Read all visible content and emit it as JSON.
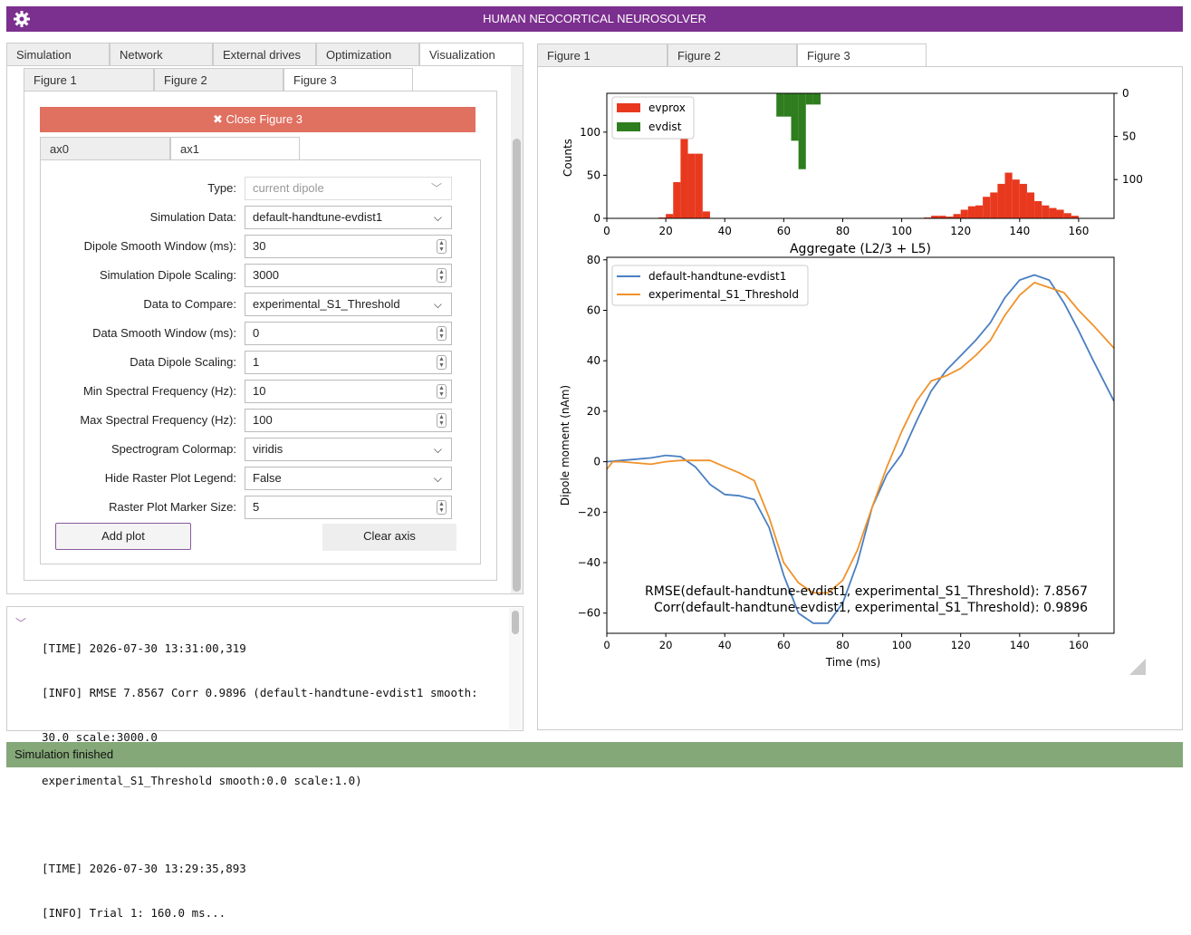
{
  "app": {
    "title": "HUMAN NEOCORTICAL NEUROSOLVER"
  },
  "main_tabs": [
    {
      "label": "Simulation"
    },
    {
      "label": "Network"
    },
    {
      "label": "External drives"
    },
    {
      "label": "Optimization"
    },
    {
      "label": "Visualization"
    }
  ],
  "viz_tabs": [
    {
      "label": "Figure 1"
    },
    {
      "label": "Figure 2"
    },
    {
      "label": "Figure 3"
    }
  ],
  "close_button": "✖ Close Figure 3",
  "ax_tabs": [
    {
      "label": "ax0"
    },
    {
      "label": "ax1"
    }
  ],
  "form": [
    {
      "label": "Type:",
      "value": "current dipole",
      "kind": "select",
      "disabled": true
    },
    {
      "label": "Simulation Data:",
      "value": "default-handtune-evdist1",
      "kind": "select"
    },
    {
      "label": "Dipole Smooth Window (ms):",
      "value": "30",
      "kind": "number"
    },
    {
      "label": "Simulation Dipole Scaling:",
      "value": "3000",
      "kind": "number"
    },
    {
      "label": "Data to Compare:",
      "value": "experimental_S1_Threshold",
      "kind": "select"
    },
    {
      "label": "Data Smooth Window (ms):",
      "value": "0",
      "kind": "number"
    },
    {
      "label": "Data Dipole Scaling:",
      "value": "1",
      "kind": "number"
    },
    {
      "label": "Min Spectral Frequency (Hz):",
      "value": "10",
      "kind": "number"
    },
    {
      "label": "Max Spectral Frequency (Hz):",
      "value": "100",
      "kind": "number"
    },
    {
      "label": "Spectrogram Colormap:",
      "value": "viridis",
      "kind": "select"
    },
    {
      "label": "Hide Raster Plot Legend:",
      "value": "False",
      "kind": "select"
    },
    {
      "label": "Raster Plot Marker Size:",
      "value": "5",
      "kind": "number"
    }
  ],
  "buttons": {
    "add_plot": "Add plot",
    "clear_axis": "Clear axis"
  },
  "log_lines": [
    "[TIME] 2026-07-30 13:31:00,319",
    "[INFO] RMSE 7.8567 Corr 0.9896 (default-handtune-evdist1 smooth:",
    "30.0 scale:3000.0",
    "experimental_S1_Threshold smooth:0.0 scale:1.0)",
    "",
    "[TIME] 2026-07-30 13:29:35,893",
    "[INFO] Trial 1: 160.0 ms..."
  ],
  "figure_tabs": [
    {
      "label": "Figure 1"
    },
    {
      "label": "Figure 2"
    },
    {
      "label": "Figure 3"
    }
  ],
  "status": "Simulation finished",
  "colors": {
    "accent": "#7b2f8e",
    "close": "#e07060",
    "status": "#84a878",
    "evprox": "#e8391e",
    "evdist": "#2e7d1e",
    "sim": "#4a7fc1",
    "exp": "#f0922b"
  },
  "chart_data": [
    {
      "type": "bar",
      "title": "",
      "xlabel": "Aggregate (L2/3 + L5)",
      "ylabel": "Counts",
      "xlim": [
        0,
        172
      ],
      "ylim_left": [
        0,
        145
      ],
      "ylim_right_inverted": [
        0,
        145
      ],
      "x_ticks": [
        "0",
        "20",
        "40",
        "60",
        "80",
        "100",
        "120",
        "140",
        "160"
      ],
      "y_ticks_left": [
        "0",
        "50",
        "100"
      ],
      "y_ticks_right": [
        "0",
        "50",
        "100"
      ],
      "bin_width": 2.5,
      "series": [
        {
          "name": "evprox",
          "axis": "left",
          "bins": [
            [
              17.5,
              1
            ],
            [
              20,
              5
            ],
            [
              22.5,
              42
            ],
            [
              25,
              130
            ],
            [
              27.5,
              75
            ],
            [
              30,
              75
            ],
            [
              32.5,
              8
            ],
            [
              107.5,
              1
            ],
            [
              110,
              3
            ],
            [
              112.5,
              3
            ],
            [
              115,
              2
            ],
            [
              117.5,
              5
            ],
            [
              120,
              10
            ],
            [
              122.5,
              14
            ],
            [
              125,
              15
            ],
            [
              127.5,
              25
            ],
            [
              130,
              30
            ],
            [
              132.5,
              40
            ],
            [
              135,
              53
            ],
            [
              137.5,
              45
            ],
            [
              140,
              40
            ],
            [
              142.5,
              30
            ],
            [
              145,
              20
            ],
            [
              147.5,
              15
            ],
            [
              150,
              12
            ],
            [
              152.5,
              10
            ],
            [
              155,
              6
            ],
            [
              157.5,
              3
            ]
          ]
        },
        {
          "name": "evdist",
          "axis": "right_inverted",
          "bins": [
            [
              57.5,
              27
            ],
            [
              60,
              27
            ],
            [
              62.5,
              55
            ],
            [
              65,
              88
            ],
            [
              67.5,
              13
            ],
            [
              70,
              13
            ]
          ]
        }
      ],
      "legend": "top-left"
    },
    {
      "type": "line",
      "title": "",
      "xlabel": "Time (ms)",
      "ylabel": "Dipole moment (nAm)",
      "xlim": [
        0,
        172
      ],
      "ylim": [
        -68,
        81
      ],
      "x_ticks": [
        "0",
        "20",
        "40",
        "60",
        "80",
        "100",
        "120",
        "140",
        "160"
      ],
      "y_ticks": [
        "80",
        "60",
        "40",
        "20",
        "0",
        "−20",
        "−40",
        "−60"
      ],
      "series": [
        {
          "name": "default-handtune-evdist1",
          "x": [
            0,
            5,
            10,
            15,
            20,
            25,
            30,
            35,
            40,
            45,
            50,
            55,
            60,
            65,
            70,
            75,
            80,
            85,
            90,
            95,
            100,
            105,
            110,
            115,
            120,
            125,
            130,
            135,
            140,
            145,
            150,
            155,
            160,
            165,
            172
          ],
          "y": [
            0,
            0.5,
            1,
            1.5,
            2.5,
            2,
            -2,
            -9,
            -13,
            -13.5,
            -15,
            -26,
            -45,
            -60,
            -64,
            -64,
            -56,
            -40,
            -18,
            -5,
            3,
            16,
            28,
            36,
            42,
            48,
            55,
            65,
            72,
            74,
            72,
            63,
            52,
            40,
            24
          ]
        },
        {
          "name": "experimental_S1_Threshold",
          "x": [
            0,
            2,
            5,
            10,
            15,
            20,
            25,
            30,
            35,
            40,
            45,
            50,
            55,
            60,
            65,
            70,
            75,
            80,
            85,
            90,
            95,
            100,
            105,
            110,
            115,
            120,
            125,
            130,
            135,
            140,
            145,
            150,
            155,
            160,
            165,
            172
          ],
          "y": [
            -3,
            0,
            0,
            -0.5,
            -1,
            0,
            0.5,
            0.5,
            0.5,
            -2,
            -4.5,
            -7.5,
            -22,
            -40,
            -48,
            -52,
            -52,
            -47,
            -35,
            -18,
            -2,
            12,
            24,
            32,
            34,
            37,
            42,
            48,
            58,
            66,
            71,
            69,
            67,
            60,
            54,
            45
          ]
        }
      ],
      "legend": "top-left",
      "annotations": [
        "RMSE(default-handtune-evdist1, experimental_S1_Threshold): 7.8567",
        "Corr(default-handtune-evdist1, experimental_S1_Threshold): 0.9896"
      ]
    }
  ]
}
